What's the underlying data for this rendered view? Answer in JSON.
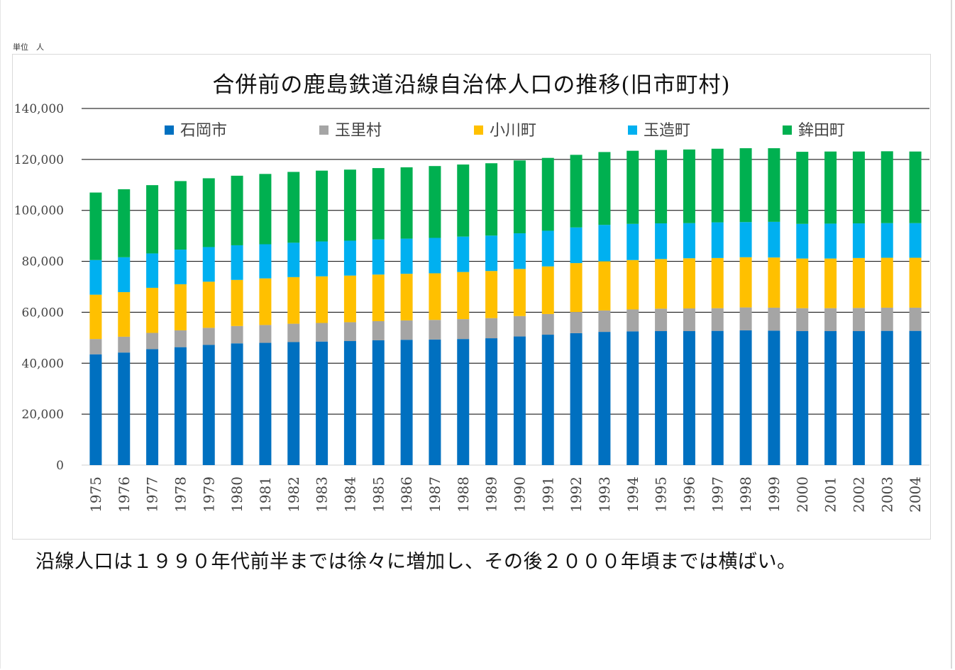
{
  "unit_label": "単位　人",
  "caption": "沿線人口は１９９０年代前半までは徐々に増加し、その後２０００年頃までは横ばい。",
  "chart_data": {
    "type": "bar",
    "stacked": true,
    "title": "合併前の鹿島鉄道沿線自治体人口の推移(旧市町村)",
    "xlabel": "",
    "ylabel": "",
    "ylim": [
      0,
      140000
    ],
    "yticks": [
      0,
      20000,
      40000,
      60000,
      80000,
      100000,
      120000,
      140000
    ],
    "ytick_labels": [
      "0",
      "20,000",
      "40,000",
      "60,000",
      "80,000",
      "100,000",
      "120,000",
      "140,000"
    ],
    "grid": true,
    "legend_position": "top",
    "categories": [
      "1975",
      "1976",
      "1977",
      "1978",
      "1979",
      "1980",
      "1981",
      "1982",
      "1983",
      "1984",
      "1985",
      "1986",
      "1987",
      "1988",
      "1989",
      "1990",
      "1991",
      "1992",
      "1993",
      "1994",
      "1995",
      "1996",
      "1997",
      "1998",
      "1999",
      "2000",
      "2001",
      "2002",
      "2003",
      "2004"
    ],
    "series": [
      {
        "name": "石岡市",
        "color": "#0070C0",
        "values": [
          43500,
          44200,
          45500,
          46300,
          47200,
          47800,
          48000,
          48300,
          48500,
          48700,
          49000,
          49200,
          49300,
          49500,
          49800,
          50500,
          51200,
          51800,
          52300,
          52500,
          52600,
          52600,
          52700,
          52900,
          52800,
          52600,
          52600,
          52600,
          52700,
          52700
        ]
      },
      {
        "name": "玉里村",
        "color": "#A5A5A5",
        "values": [
          6000,
          6200,
          6400,
          6600,
          6700,
          6800,
          7000,
          7200,
          7300,
          7400,
          7500,
          7600,
          7700,
          7800,
          7900,
          8000,
          8100,
          8300,
          8400,
          8600,
          8800,
          8900,
          8900,
          9000,
          9000,
          9000,
          9000,
          9100,
          9100,
          9100
        ]
      },
      {
        "name": "小川町",
        "color": "#FFC000",
        "values": [
          17400,
          17500,
          17700,
          18100,
          18100,
          18100,
          18300,
          18300,
          18300,
          18300,
          18300,
          18300,
          18300,
          18500,
          18500,
          18500,
          18700,
          19200,
          19300,
          19400,
          19500,
          19700,
          19700,
          19700,
          19700,
          19500,
          19500,
          19600,
          19600,
          19600
        ]
      },
      {
        "name": "玉造町",
        "color": "#00B0F0",
        "values": [
          13600,
          13700,
          13500,
          13600,
          13600,
          13600,
          13400,
          13500,
          13700,
          13700,
          13800,
          13800,
          13900,
          13900,
          13900,
          14000,
          14000,
          14000,
          14300,
          14200,
          14000,
          13800,
          14000,
          13800,
          14000,
          13600,
          13700,
          13600,
          13600,
          13600
        ]
      },
      {
        "name": "鉾田町",
        "color": "#00B050",
        "values": [
          26500,
          26700,
          26800,
          26900,
          27000,
          27300,
          27600,
          27800,
          27800,
          27900,
          28000,
          28000,
          28200,
          28300,
          28400,
          28600,
          28600,
          28500,
          28600,
          28700,
          28800,
          28900,
          28900,
          29000,
          28900,
          28300,
          28300,
          28200,
          28200,
          28100
        ]
      }
    ]
  }
}
